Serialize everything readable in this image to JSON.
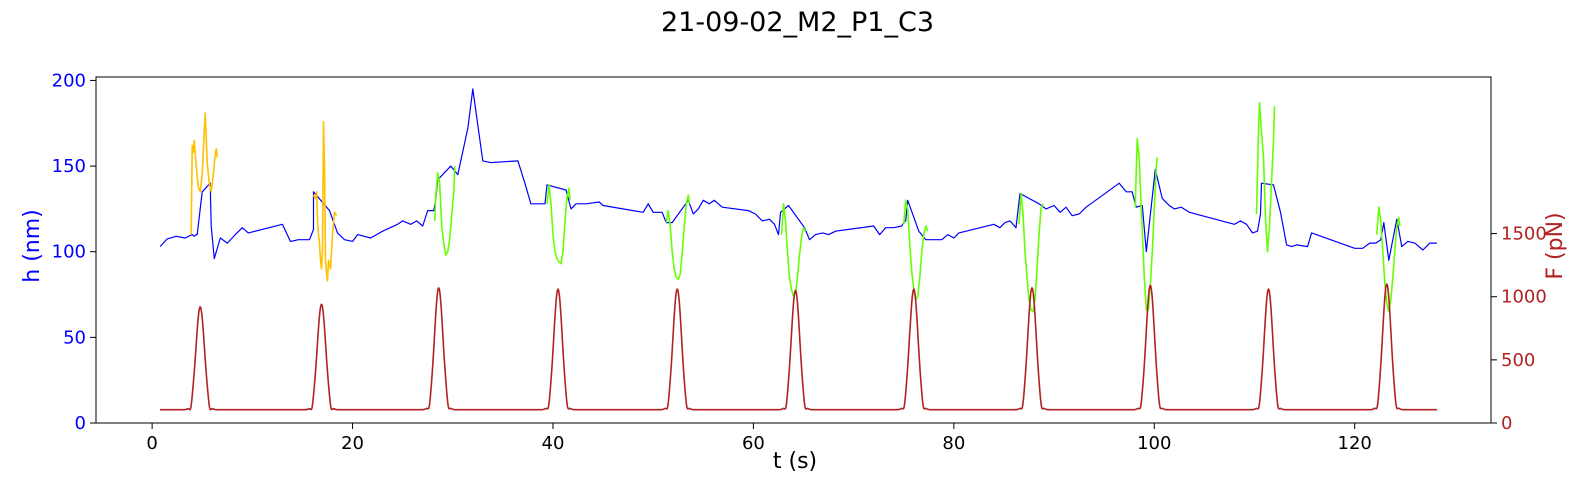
{
  "chart_data": {
    "type": "line",
    "title": "21-09-02_M2_P1_C3",
    "xlabel": "t (s)",
    "ylabel_left": "h (nm)",
    "ylabel_right": "F (pN)",
    "xlim": [
      -5.6,
      133.6
    ],
    "ylim_left": [
      0,
      202
    ],
    "ylim_right": [
      0,
      2740
    ],
    "xticks": [
      0,
      20,
      40,
      60,
      80,
      100,
      120
    ],
    "yticks_left": [
      0,
      50,
      100,
      150,
      200
    ],
    "yticks_right": [
      0,
      500,
      1000,
      1500
    ],
    "grid": false,
    "colors": {
      "left_axis": "#0000ff",
      "right_axis": "#b22222",
      "height_trace": "#0000ff",
      "force_trace": "#b22222",
      "segment_orange": "#ffc000",
      "segment_green": "#66ff00"
    },
    "series_height": [
      [
        0.8,
        103
      ],
      [
        1.5,
        107.5
      ],
      [
        2.4,
        109
      ],
      [
        3.3,
        108
      ],
      [
        4.0,
        110
      ],
      [
        4.2,
        109
      ],
      [
        4.4,
        110
      ],
      [
        4.5,
        110
      ],
      [
        5.0,
        135
      ],
      [
        5.8,
        140
      ],
      [
        5.9,
        115
      ],
      [
        6.2,
        96
      ],
      [
        6.8,
        108
      ],
      [
        7.5,
        105
      ],
      [
        8.3,
        110
      ],
      [
        9.0,
        114
      ],
      [
        9.6,
        111
      ],
      [
        13.0,
        116
      ],
      [
        13.8,
        106
      ],
      [
        14.6,
        107
      ],
      [
        15.7,
        107
      ],
      [
        16.1,
        113
      ],
      [
        16.1,
        135
      ],
      [
        17.7,
        124
      ],
      [
        18.5,
        111
      ],
      [
        19.2,
        107
      ],
      [
        20.0,
        106
      ],
      [
        20.5,
        110
      ],
      [
        21.8,
        108
      ],
      [
        23.0,
        112
      ],
      [
        24.5,
        116
      ],
      [
        25.0,
        118
      ],
      [
        25.8,
        116
      ],
      [
        26.4,
        118
      ],
      [
        27.0,
        115
      ],
      [
        27.5,
        124
      ],
      [
        28.1,
        124
      ],
      [
        28.3,
        130
      ],
      [
        28.5,
        142
      ],
      [
        29.8,
        150
      ],
      [
        30.5,
        145
      ],
      [
        31.5,
        172
      ],
      [
        32.0,
        195
      ],
      [
        33.0,
        153
      ],
      [
        33.8,
        152
      ],
      [
        36.5,
        153
      ],
      [
        37.2,
        140
      ],
      [
        37.8,
        128
      ],
      [
        38.6,
        128
      ],
      [
        39.1,
        128
      ],
      [
        39.2,
        128
      ],
      [
        39.4,
        139
      ],
      [
        41.3,
        136
      ],
      [
        41.8,
        125
      ],
      [
        42.3,
        128
      ],
      [
        43.3,
        128
      ],
      [
        44.6,
        129
      ],
      [
        45.0,
        127
      ],
      [
        49.0,
        123
      ],
      [
        49.5,
        128
      ],
      [
        50.0,
        123
      ],
      [
        50.9,
        123
      ],
      [
        51.3,
        117
      ],
      [
        51.9,
        117
      ],
      [
        53.5,
        130
      ],
      [
        54.0,
        122
      ],
      [
        54.5,
        125
      ],
      [
        55.0,
        130
      ],
      [
        55.6,
        128
      ],
      [
        56.1,
        130
      ],
      [
        56.9,
        126
      ],
      [
        59.5,
        124
      ],
      [
        60.2,
        122
      ],
      [
        60.9,
        118
      ],
      [
        61.6,
        119
      ],
      [
        62.1,
        116
      ],
      [
        62.5,
        110
      ],
      [
        62.7,
        123
      ],
      [
        63.5,
        127
      ],
      [
        65.1,
        114
      ],
      [
        65.6,
        107
      ],
      [
        66.2,
        110
      ],
      [
        66.9,
        111
      ],
      [
        67.5,
        110
      ],
      [
        68.2,
        112
      ],
      [
        69.5,
        113
      ],
      [
        72.0,
        115
      ],
      [
        72.6,
        110
      ],
      [
        73.2,
        114
      ],
      [
        74.0,
        114
      ],
      [
        74.8,
        115
      ],
      [
        75.0,
        117
      ],
      [
        75.2,
        118
      ],
      [
        75.4,
        130
      ],
      [
        76.5,
        112
      ],
      [
        77.2,
        107
      ],
      [
        77.8,
        107
      ],
      [
        78.8,
        107
      ],
      [
        79.4,
        110
      ],
      [
        80.0,
        108
      ],
      [
        80.5,
        111
      ],
      [
        84.0,
        116
      ],
      [
        84.6,
        114
      ],
      [
        85.1,
        117
      ],
      [
        85.6,
        118
      ],
      [
        86.2,
        114
      ],
      [
        86.6,
        134
      ],
      [
        88.5,
        128
      ],
      [
        89.2,
        125
      ],
      [
        90.0,
        127
      ],
      [
        90.6,
        123
      ],
      [
        91.2,
        126
      ],
      [
        91.8,
        121
      ],
      [
        92.5,
        122
      ],
      [
        93.2,
        126
      ],
      [
        95.8,
        137
      ],
      [
        96.5,
        140
      ],
      [
        97.2,
        135
      ],
      [
        97.8,
        135
      ],
      [
        98.2,
        126
      ],
      [
        98.8,
        127
      ],
      [
        99.2,
        100
      ],
      [
        100.1,
        148
      ],
      [
        100.8,
        131
      ],
      [
        101.5,
        127
      ],
      [
        102.0,
        125
      ],
      [
        102.7,
        126
      ],
      [
        103.5,
        123
      ],
      [
        108.0,
        116
      ],
      [
        108.6,
        118
      ],
      [
        109.2,
        116
      ],
      [
        109.8,
        111
      ],
      [
        110.3,
        112
      ],
      [
        110.6,
        122
      ],
      [
        110.7,
        140
      ],
      [
        111.9,
        139
      ],
      [
        112.6,
        123
      ],
      [
        113.2,
        104
      ],
      [
        113.7,
        103
      ],
      [
        114.2,
        104
      ],
      [
        115.3,
        103
      ],
      [
        115.7,
        111
      ],
      [
        120.0,
        102
      ],
      [
        120.8,
        102
      ],
      [
        121.5,
        105
      ],
      [
        122.1,
        105
      ],
      [
        122.6,
        107
      ],
      [
        122.9,
        117
      ],
      [
        123.4,
        95
      ],
      [
        124.2,
        119
      ],
      [
        124.7,
        103
      ],
      [
        125.3,
        106
      ],
      [
        126.0,
        105
      ],
      [
        126.8,
        101
      ],
      [
        127.5,
        105
      ],
      [
        128.2,
        105
      ]
    ],
    "segments_orange": [
      [
        [
          3.9,
          110
        ],
        [
          4.0,
          162
        ],
        [
          4.1,
          158
        ],
        [
          4.2,
          165
        ],
        [
          4.4,
          150
        ],
        [
          4.6,
          138
        ],
        [
          4.8,
          135
        ],
        [
          5.0,
          145
        ],
        [
          5.2,
          170
        ],
        [
          5.3,
          181
        ],
        [
          5.5,
          152
        ],
        [
          5.7,
          140
        ],
        [
          5.9,
          135
        ],
        [
          6.1,
          145
        ],
        [
          6.3,
          157
        ],
        [
          6.4,
          160
        ],
        [
          6.5,
          155
        ]
      ],
      [
        [
          16.1,
          133
        ],
        [
          16.3,
          131
        ],
        [
          16.4,
          135
        ],
        [
          16.5,
          118
        ],
        [
          16.6,
          110
        ],
        [
          16.7,
          105
        ],
        [
          16.8,
          95
        ],
        [
          16.9,
          90
        ],
        [
          17.0,
          100
        ],
        [
          17.1,
          176
        ],
        [
          17.2,
          150
        ],
        [
          17.3,
          95
        ],
        [
          17.4,
          88
        ],
        [
          17.5,
          83
        ],
        [
          17.6,
          95
        ],
        [
          17.8,
          90
        ],
        [
          18.0,
          110
        ],
        [
          18.2,
          123
        ],
        [
          18.4,
          121
        ]
      ]
    ],
    "segments_green": [
      [
        [
          28.2,
          118
        ],
        [
          28.3,
          132
        ],
        [
          28.5,
          146
        ],
        [
          28.7,
          140
        ],
        [
          28.9,
          115
        ],
        [
          29.1,
          105
        ],
        [
          29.3,
          98
        ],
        [
          29.5,
          100
        ],
        [
          29.7,
          108
        ],
        [
          29.9,
          122
        ],
        [
          30.1,
          135
        ],
        [
          30.2,
          150
        ]
      ],
      [
        [
          39.4,
          128
        ],
        [
          39.6,
          139
        ],
        [
          39.8,
          128
        ],
        [
          40.0,
          110
        ],
        [
          40.2,
          100
        ],
        [
          40.4,
          96
        ],
        [
          40.6,
          94
        ],
        [
          40.8,
          93
        ],
        [
          41.0,
          100
        ],
        [
          41.2,
          118
        ],
        [
          41.4,
          132
        ],
        [
          41.6,
          137
        ],
        [
          41.7,
          130
        ]
      ],
      [
        [
          51.3,
          117
        ],
        [
          51.5,
          124
        ],
        [
          51.7,
          115
        ],
        [
          51.9,
          100
        ],
        [
          52.1,
          90
        ],
        [
          52.3,
          85
        ],
        [
          52.5,
          84
        ],
        [
          52.7,
          87
        ],
        [
          52.9,
          100
        ],
        [
          53.1,
          115
        ],
        [
          53.3,
          128
        ],
        [
          53.5,
          133
        ],
        [
          53.6,
          128
        ]
      ],
      [
        [
          62.8,
          110
        ],
        [
          63.0,
          128
        ],
        [
          63.2,
          118
        ],
        [
          63.4,
          100
        ],
        [
          63.6,
          85
        ],
        [
          63.8,
          78
        ],
        [
          64.0,
          74
        ],
        [
          64.2,
          76
        ],
        [
          64.4,
          85
        ],
        [
          64.6,
          98
        ],
        [
          64.8,
          108
        ],
        [
          65.0,
          114
        ],
        [
          65.2,
          112
        ]
      ],
      [
        [
          75.0,
          116
        ],
        [
          75.2,
          130
        ],
        [
          75.4,
          125
        ],
        [
          75.6,
          105
        ],
        [
          75.8,
          88
        ],
        [
          76.0,
          78
        ],
        [
          76.2,
          72
        ],
        [
          76.4,
          74
        ],
        [
          76.6,
          85
        ],
        [
          76.8,
          100
        ],
        [
          77.0,
          110
        ],
        [
          77.2,
          115
        ],
        [
          77.4,
          112
        ]
      ],
      [
        [
          86.5,
          116
        ],
        [
          86.7,
          134
        ],
        [
          86.9,
          122
        ],
        [
          87.1,
          100
        ],
        [
          87.3,
          85
        ],
        [
          87.5,
          72
        ],
        [
          87.7,
          66
        ],
        [
          87.9,
          65
        ],
        [
          88.1,
          72
        ],
        [
          88.3,
          90
        ],
        [
          88.5,
          110
        ],
        [
          88.7,
          125
        ],
        [
          88.9,
          128
        ]
      ],
      [
        [
          98.1,
          126
        ],
        [
          98.3,
          166
        ],
        [
          98.5,
          155
        ],
        [
          98.6,
          140
        ],
        [
          98.8,
          112
        ],
        [
          99.0,
          85
        ],
        [
          99.2,
          66
        ],
        [
          99.4,
          66
        ],
        [
          99.6,
          80
        ],
        [
          99.8,
          100
        ],
        [
          100.0,
          125
        ],
        [
          100.2,
          150
        ],
        [
          100.3,
          155
        ]
      ],
      [
        [
          110.2,
          122
        ],
        [
          110.4,
          170
        ],
        [
          110.5,
          187
        ],
        [
          110.7,
          170
        ],
        [
          110.9,
          155
        ],
        [
          111.1,
          120
        ],
        [
          111.3,
          100
        ],
        [
          111.5,
          115
        ],
        [
          111.7,
          140
        ],
        [
          111.9,
          165
        ],
        [
          112.0,
          185
        ]
      ],
      [
        [
          122.2,
          110
        ],
        [
          122.4,
          126
        ],
        [
          122.6,
          118
        ],
        [
          122.8,
          100
        ],
        [
          123.0,
          82
        ],
        [
          123.2,
          70
        ],
        [
          123.4,
          65
        ],
        [
          123.6,
          72
        ],
        [
          123.8,
          85
        ],
        [
          124.0,
          100
        ],
        [
          124.2,
          115
        ],
        [
          124.4,
          120
        ],
        [
          124.5,
          115
        ]
      ]
    ],
    "force_pulses": {
      "baseline": 105,
      "peak_times": [
        4.8,
        16.9,
        28.6,
        40.5,
        52.4,
        64.2,
        76.0,
        87.8,
        99.6,
        111.4,
        123.2
      ],
      "peak_values": [
        920,
        940,
        1070,
        1060,
        1060,
        1050,
        1060,
        1070,
        1090,
        1060,
        1100
      ],
      "width": 0.42,
      "dip": 50,
      "t_start": 0.8,
      "t_end": 128.2
    }
  }
}
